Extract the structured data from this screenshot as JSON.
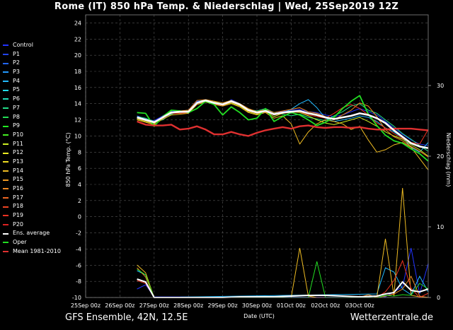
{
  "title": "Rome  (IT)  850 hPa Temp. & Niederschlag | Wed, 25Sep2019 12Z",
  "footer_left": "GFS Ensemble, 42N, 12.5E",
  "footer_right": "Wetterzentrale.de",
  "colors": {
    "background": "#000000",
    "grid": "#555555",
    "ens_average": "#ffffff",
    "oper": "#22dd22",
    "mean_climate": "#e03030"
  },
  "legend": [
    {
      "label": "Control",
      "color": "#2233ff"
    },
    {
      "label": "P1",
      "color": "#2244ee"
    },
    {
      "label": "P2",
      "color": "#2266ff"
    },
    {
      "label": "P3",
      "color": "#2299ff"
    },
    {
      "label": "P4",
      "color": "#22bbff"
    },
    {
      "label": "P5",
      "color": "#22ddee"
    },
    {
      "label": "P6",
      "color": "#22ddbb"
    },
    {
      "label": "P7",
      "color": "#22dd88"
    },
    {
      "label": "P8",
      "color": "#22dd55"
    },
    {
      "label": "P9",
      "color": "#22ee22"
    },
    {
      "label": "P10",
      "color": "#44ee22"
    },
    {
      "label": "P11",
      "color": "#ccee22"
    },
    {
      "label": "P12",
      "color": "#eeee22"
    },
    {
      "label": "P13",
      "color": "#eedd22"
    },
    {
      "label": "P14",
      "color": "#eebb22"
    },
    {
      "label": "P15",
      "color": "#ee9922"
    },
    {
      "label": "P16",
      "color": "#ee8822"
    },
    {
      "label": "P17",
      "color": "#ee6622"
    },
    {
      "label": "P18",
      "color": "#ee4422"
    },
    {
      "label": "P19",
      "color": "#ee3322"
    },
    {
      "label": "P20",
      "color": "#dd2222"
    },
    {
      "label": "Ens. average",
      "color": "#ffffff"
    },
    {
      "label": "Oper",
      "color": "#22dd22"
    },
    {
      "label": "Mean 1981-2010",
      "color": "#e03030"
    }
  ],
  "chart_data": {
    "type": "line",
    "xlabel": "Date (UTC)",
    "ylabel_left": "850 hPa Temp. (°C)",
    "ylabel_right": "Niederschlag (mm)",
    "x_ticks": [
      "25Sep 00z",
      "26Sep 00z",
      "27Sep 00z",
      "28Sep 00z",
      "29Sep 00z",
      "30Sep 00z",
      "01Oct 00z",
      "02Oct 00z",
      "03Oct 00z"
    ],
    "y_left_ticks": [
      "-10",
      "-8",
      "-6",
      "-4",
      "-2",
      "0",
      "2",
      "4",
      "6",
      "8",
      "10",
      "12",
      "14",
      "16",
      "18",
      "20",
      "22",
      "24"
    ],
    "y_right_ticks": [
      "0",
      "10",
      "20",
      "30"
    ],
    "ylim_left": [
      -10,
      25
    ],
    "ylim_right": [
      0,
      40
    ],
    "grid": true,
    "x_hours": [
      36,
      42,
      48,
      54,
      60,
      66,
      72,
      78,
      84,
      90,
      96,
      102,
      108,
      114,
      120,
      126,
      132,
      138,
      144,
      150,
      156,
      162,
      168,
      174,
      180,
      186,
      192,
      198,
      204,
      210,
      216,
      222,
      228,
      234,
      240
    ],
    "temperature_series": [
      {
        "name": "Ens. average",
        "values": [
          12.3,
          12.0,
          11.7,
          12.3,
          12.9,
          13.0,
          13.0,
          14.1,
          14.4,
          14.1,
          13.9,
          14.3,
          13.9,
          13.2,
          12.9,
          13.1,
          12.7,
          12.9,
          13.0,
          13.1,
          12.8,
          12.6,
          12.3,
          12.1,
          12.3,
          12.5,
          12.8,
          12.6,
          12.2,
          11.6,
          10.7,
          9.9,
          9.1,
          8.7,
          8.5
        ]
      },
      {
        "name": "Oper",
        "values": [
          12.9,
          12.8,
          11.2,
          12.4,
          13.2,
          13.1,
          12.9,
          13.4,
          14.3,
          13.9,
          12.6,
          13.6,
          12.9,
          12.0,
          12.2,
          13.4,
          11.8,
          12.4,
          12.9,
          12.6,
          12.0,
          11.3,
          11.7,
          12.3,
          13.4,
          14.3,
          15.0,
          12.7,
          11.3,
          10.1,
          9.4,
          9.1,
          8.4,
          7.8,
          6.9
        ]
      },
      {
        "name": "Mean 1981-2010",
        "values": [
          11.8,
          11.4,
          11.3,
          11.3,
          11.4,
          10.8,
          10.9,
          11.2,
          10.8,
          10.2,
          10.2,
          10.5,
          10.2,
          10.0,
          10.4,
          10.7,
          10.9,
          11.1,
          10.9,
          11.2,
          11.3,
          11.1,
          11.0,
          11.1,
          11.1,
          11.0,
          11.1,
          10.9,
          10.8,
          10.8,
          10.9,
          10.9,
          10.9,
          10.8,
          10.7
        ]
      },
      {
        "name": "Control",
        "values": [
          12.5,
          12.1,
          11.9,
          12.5,
          13.1,
          13.0,
          13.2,
          14.3,
          14.4,
          14.2,
          13.8,
          14.5,
          14.0,
          13.3,
          12.8,
          13.2,
          12.9,
          13.0,
          13.2,
          13.3,
          13.0,
          12.9,
          12.6,
          12.4,
          12.6,
          13.0,
          13.4,
          13.0,
          12.6,
          11.8,
          11.0,
          10.2,
          9.5,
          9.0,
          8.8
        ]
      },
      {
        "name": "P4",
        "values": [
          12.2,
          11.9,
          11.6,
          12.2,
          12.8,
          12.9,
          13.0,
          14.2,
          14.5,
          14.0,
          14.0,
          14.2,
          13.8,
          13.1,
          13.0,
          13.0,
          12.6,
          12.8,
          13.3,
          14.0,
          14.5,
          13.5,
          12.2,
          11.8,
          12.0,
          12.2,
          12.5,
          12.3,
          11.8,
          11.0,
          10.5,
          9.8,
          8.6,
          8.0,
          9.2
        ]
      },
      {
        "name": "P7",
        "values": [
          12.4,
          12.2,
          11.8,
          12.0,
          12.7,
          13.1,
          13.1,
          14.0,
          14.3,
          14.2,
          14.1,
          14.4,
          14.0,
          13.3,
          13.1,
          13.4,
          12.9,
          12.7,
          12.5,
          12.7,
          12.3,
          12.1,
          11.9,
          12.5,
          13.0,
          13.7,
          14.0,
          13.2,
          12.8,
          12.0,
          11.2,
          10.3,
          9.6,
          8.8,
          8.1
        ]
      },
      {
        "name": "P11",
        "values": [
          12.1,
          11.8,
          11.5,
          12.4,
          13.0,
          12.8,
          12.9,
          14.1,
          14.5,
          14.3,
          13.8,
          14.1,
          13.7,
          13.0,
          12.7,
          13.0,
          12.4,
          12.8,
          13.0,
          12.9,
          12.5,
          12.0,
          11.6,
          11.4,
          11.7,
          12.0,
          12.3,
          11.8,
          11.2,
          10.5,
          10.0,
          9.6,
          8.9,
          8.3,
          7.5
        ]
      },
      {
        "name": "P14",
        "values": [
          12.0,
          11.7,
          11.4,
          12.1,
          12.6,
          12.7,
          12.8,
          13.9,
          14.2,
          13.9,
          13.7,
          14.0,
          13.6,
          12.9,
          12.6,
          12.9,
          12.2,
          12.5,
          11.5,
          9.0,
          10.5,
          11.5,
          12.0,
          11.8,
          11.5,
          10.8,
          11.2,
          9.5,
          8.0,
          8.3,
          8.9,
          9.2,
          8.6,
          7.2,
          5.8
        ]
      },
      {
        "name": "P16",
        "values": [
          12.3,
          12.0,
          11.8,
          12.3,
          12.9,
          13.1,
          13.2,
          14.4,
          14.5,
          14.3,
          14.1,
          14.4,
          14.0,
          13.4,
          13.0,
          13.3,
          12.9,
          13.1,
          13.3,
          13.5,
          13.0,
          12.8,
          12.4,
          12.0,
          12.6,
          13.2,
          14.1,
          13.7,
          12.4,
          10.8,
          9.9,
          9.4,
          8.7,
          8.1,
          7.4
        ]
      },
      {
        "name": "P19",
        "values": [
          12.2,
          11.9,
          11.6,
          12.2,
          12.8,
          12.8,
          12.9,
          14.0,
          14.3,
          14.0,
          13.8,
          14.2,
          13.8,
          13.1,
          12.8,
          13.0,
          12.6,
          12.8,
          12.9,
          13.0,
          12.6,
          12.4,
          12.2,
          12.8,
          13.5,
          13.9,
          13.4,
          12.6,
          11.6,
          11.0,
          10.3,
          9.7,
          9.2,
          9.0,
          10.8
        ]
      }
    ],
    "precip_series": [
      {
        "name": "Control",
        "hours": [
          36,
          42,
          48,
          192,
          204,
          210,
          216,
          222,
          228,
          234,
          240
        ],
        "values": [
          1.2,
          1.8,
          0.1,
          0.0,
          0.2,
          0.1,
          0.8,
          1.5,
          7.0,
          0.5,
          4.8
        ]
      },
      {
        "name": "P4",
        "hours": [
          36,
          42,
          48,
          204,
          210,
          216,
          222,
          228,
          234,
          240
        ],
        "values": [
          3.8,
          3.2,
          0.0,
          0.5,
          4.2,
          3.6,
          1.2,
          0.4,
          3.0,
          0.8
        ]
      },
      {
        "name": "P14",
        "hours": [
          36,
          42,
          48,
          144,
          150,
          156,
          162,
          204,
          210,
          216,
          222,
          228,
          234,
          240
        ],
        "values": [
          4.6,
          3.5,
          0.0,
          0.0,
          7.0,
          0.2,
          0.0,
          0.0,
          8.3,
          0.2,
          15.5,
          0.3,
          0.1,
          0.0
        ]
      },
      {
        "name": "P16",
        "hours": [
          36,
          42,
          48,
          192,
          198,
          204,
          210,
          216,
          222,
          228,
          234,
          240
        ],
        "values": [
          4.2,
          2.9,
          0.0,
          0.0,
          0.4,
          0.0,
          0.2,
          0.5,
          1.2,
          3.0,
          0.2,
          0.0
        ]
      },
      {
        "name": "P19",
        "hours": [
          36,
          42,
          48,
          204,
          210,
          216,
          222,
          228,
          234,
          240
        ],
        "values": [
          2.4,
          2.0,
          0.0,
          0.0,
          0.8,
          2.4,
          5.2,
          1.3,
          0.0,
          0.6
        ]
      },
      {
        "name": "Oper",
        "hours": [
          36,
          42,
          48,
          156,
          162,
          168,
          174,
          204,
          210,
          216,
          222,
          228,
          234,
          240
        ],
        "values": [
          4.0,
          3.2,
          0.0,
          0.0,
          5.1,
          0.0,
          0.0,
          0.0,
          0.3,
          0.2,
          0.4,
          0.3,
          2.0,
          1.2
        ]
      },
      {
        "name": "Ens. average",
        "hours": [
          36,
          42,
          48,
          60,
          72,
          84,
          96,
          108,
          120,
          132,
          144,
          156,
          168,
          180,
          192,
          204,
          210,
          216,
          222,
          228,
          234,
          240
        ],
        "values": [
          2.6,
          2.2,
          0.0,
          0.0,
          0.0,
          0.0,
          0.0,
          0.1,
          0.1,
          0.1,
          0.2,
          0.3,
          0.3,
          0.2,
          0.1,
          0.2,
          0.5,
          0.7,
          2.2,
          1.0,
          0.8,
          1.2
        ]
      }
    ]
  }
}
